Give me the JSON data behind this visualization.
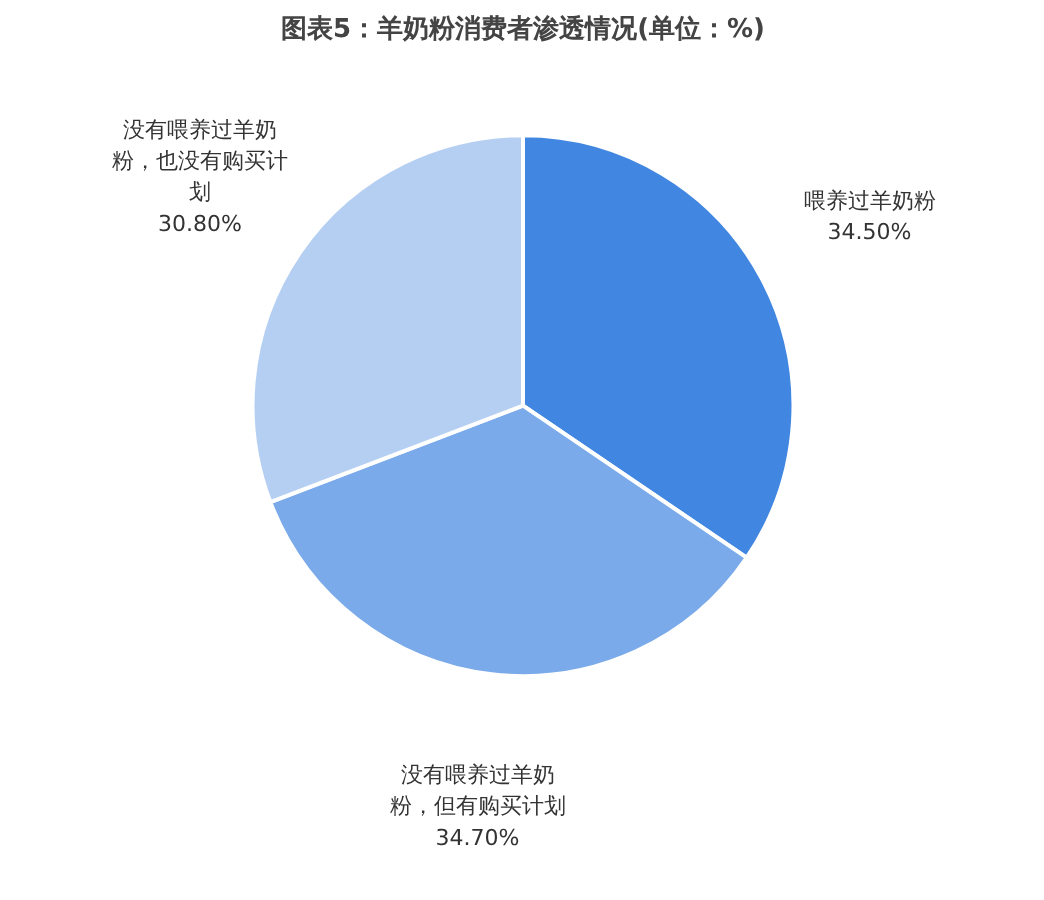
{
  "chart_data": {
    "type": "pie",
    "title": "图表5：羊奶粉消费者渗透情况(单位：%)",
    "categories": [
      "喂养过羊奶粉",
      "没有喂养过羊奶粉，但有购买计划",
      "没有喂养过羊奶粉，也没有购买计划"
    ],
    "values": [
      34.5,
      34.7,
      30.8
    ],
    "value_labels": [
      "34.50%",
      "34.70%",
      "30.80%"
    ],
    "colors": [
      "#4186e0",
      "#7aaaea",
      "#b5cff3"
    ]
  }
}
